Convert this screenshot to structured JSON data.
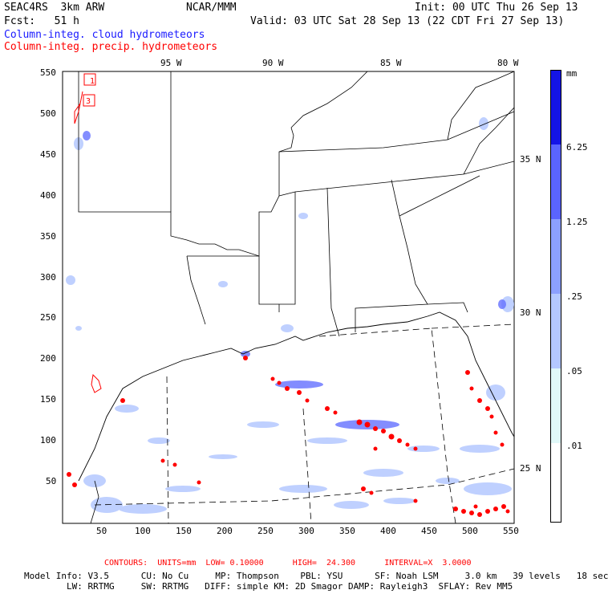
{
  "header": {
    "model_name": "SEAC4RS  3km ARW",
    "producer": "NCAR/MMM",
    "init": "Init: 00 UTC Thu 26 Sep 13",
    "fcst": "Fcst:   51 h",
    "valid": "Valid: 03 UTC Sat 28 Sep 13 (22 CDT Fri 27 Sep 13)",
    "field1": "Column-integ. cloud hydrometeors",
    "field2": "Column-integ. precip. hydrometeors"
  },
  "colors": {
    "cloud": "#1a1aff",
    "precip": "#ff0000",
    "shade_lightest": "#e0f8f8",
    "shade_light": "#b4c8ff",
    "shade_mid": "#8ca0ff",
    "shade_dark": "#5a64ff",
    "shade_darkest": "#1414e6"
  },
  "map": {
    "lon_labels": [
      "95 W",
      "90 W",
      "85 W",
      "80 W"
    ],
    "lat_labels": [
      "35 N",
      "30 N",
      "25 N"
    ],
    "x_ticks": [
      "50",
      "100",
      "150",
      "200",
      "250",
      "300",
      "350",
      "400",
      "450",
      "500",
      "550"
    ],
    "y_ticks": [
      "550",
      "500",
      "450",
      "400",
      "350",
      "300",
      "250",
      "200",
      "150",
      "100",
      "50"
    ],
    "contour_labels": [
      "1",
      "3"
    ]
  },
  "colorbar": {
    "unit": "mm",
    "labels": [
      "6.25",
      "1.25",
      ".25",
      ".05",
      ".01"
    ]
  },
  "footer": {
    "contours": "CONTOURS:  UNITS=mm  LOW= 0.10000      HIGH=  24.300      INTERVAL=X  3.0000",
    "info1": "Model Info: V3.5      CU: No Cu     MP: Thompson    PBL: YSU      SF: Noah LSM     3.0 km   39 levels   18 sec",
    "info2": "        LW: RRTMG     SW: RRTMG   DIFF: simple KM: 2D Smagor DAMP: Rayleigh3  SFLAY: Rev MM5"
  }
}
